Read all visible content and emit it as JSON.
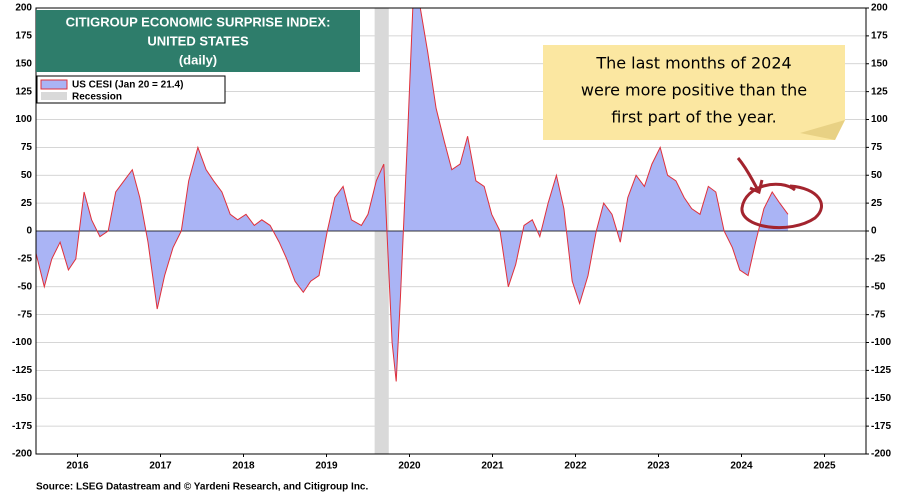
{
  "chart_data": {
    "type": "area",
    "title": [
      "CITIGROUP ECONOMIC SURPRISE INDEX:",
      "UNITED STATES",
      "(daily)"
    ],
    "source": "Source: LSEG Datastream and © Yardeni Research, and Citigroup Inc.",
    "annotation": [
      "The last months of 2024",
      "were more positive than the",
      "first part of the year."
    ],
    "recession": {
      "name": "Recession",
      "color": "#d9d9d9",
      "span": [
        2020.08,
        2020.25
      ]
    },
    "x": [
      2016.0,
      2016.1,
      2016.19,
      2016.29,
      2016.39,
      2016.48,
      2016.58,
      2016.67,
      2016.77,
      2016.87,
      2016.96,
      2017.06,
      2017.16,
      2017.25,
      2017.35,
      2017.46,
      2017.55,
      2017.65,
      2017.75,
      2017.84,
      2017.95,
      2018.05,
      2018.14,
      2018.24,
      2018.34,
      2018.43,
      2018.53,
      2018.63,
      2018.72,
      2018.82,
      2018.93,
      2019.02,
      2019.12,
      2019.22,
      2019.31,
      2019.41,
      2019.51,
      2019.6,
      2019.7,
      2019.8,
      2019.92,
      2020.0,
      2020.1,
      2020.19,
      2020.29,
      2020.34,
      2020.39,
      2020.48,
      2020.54,
      2020.63,
      2020.72,
      2020.82,
      2020.92,
      2021.01,
      2021.11,
      2021.2,
      2021.3,
      2021.4,
      2021.49,
      2021.59,
      2021.69,
      2021.78,
      2021.88,
      2021.98,
      2022.07,
      2022.17,
      2022.27,
      2022.36,
      2022.46,
      2022.55,
      2022.65,
      2022.75,
      2022.84,
      2022.94,
      2023.04,
      2023.13,
      2023.23,
      2023.33,
      2023.42,
      2023.52,
      2023.61,
      2023.71,
      2023.81,
      2023.9,
      2024.0,
      2024.1,
      2024.19,
      2024.29,
      2024.39,
      2024.48,
      2024.58,
      2024.67,
      2024.77,
      2024.87,
      2024.96,
      2025.06
    ],
    "series": [
      {
        "name": "US CESI (Jan 20 = 21.4)",
        "color": "#e0303a",
        "fill": "#aab4f5",
        "values": [
          -20,
          -50,
          -25,
          -10,
          -35,
          -25,
          35,
          10,
          -5,
          0,
          35,
          45,
          55,
          30,
          -10,
          -70,
          -40,
          -15,
          0,
          45,
          75,
          55,
          45,
          35,
          15,
          10,
          15,
          5,
          10,
          5,
          -10,
          -25,
          -45,
          -55,
          -45,
          -40,
          0,
          30,
          40,
          10,
          5,
          15,
          45,
          60,
          -100,
          -135,
          -60,
          90,
          200,
          200,
          160,
          110,
          80,
          55,
          60,
          85,
          45,
          40,
          15,
          0,
          -50,
          -30,
          5,
          10,
          -5,
          25,
          50,
          20,
          -45,
          -65,
          -40,
          0,
          25,
          15,
          -10,
          30,
          50,
          40,
          60,
          75,
          50,
          45,
          30,
          20,
          15,
          40,
          35,
          0,
          -15,
          -35,
          -40,
          -10,
          20,
          35,
          25,
          15
        ]
      }
    ],
    "xlim": [
      2016,
      2026
    ],
    "xticks": [
      {
        "value": 2016.5,
        "label": "2016"
      },
      {
        "value": 2017.5,
        "label": "2017"
      },
      {
        "value": 2018.5,
        "label": "2018"
      },
      {
        "value": 2019.5,
        "label": "2019"
      },
      {
        "value": 2020.5,
        "label": "2020"
      },
      {
        "value": 2021.5,
        "label": "2021"
      },
      {
        "value": 2022.5,
        "label": "2022"
      },
      {
        "value": 2023.5,
        "label": "2023"
      },
      {
        "value": 2024.5,
        "label": "2024"
      },
      {
        "value": 2025.5,
        "label": "2025"
      }
    ],
    "ylim": [
      -200,
      200
    ],
    "yticks": [
      -200,
      -175,
      -150,
      -125,
      -100,
      -75,
      -50,
      -25,
      0,
      25,
      50,
      75,
      100,
      125,
      150,
      175,
      200
    ],
    "y2lim": [
      -200,
      200
    ],
    "y2ticks": [
      -200,
      -175,
      -150,
      -125,
      -100,
      -75,
      -50,
      -25,
      0,
      25,
      50,
      75,
      100,
      125,
      150,
      175,
      200
    ],
    "grid": true
  }
}
